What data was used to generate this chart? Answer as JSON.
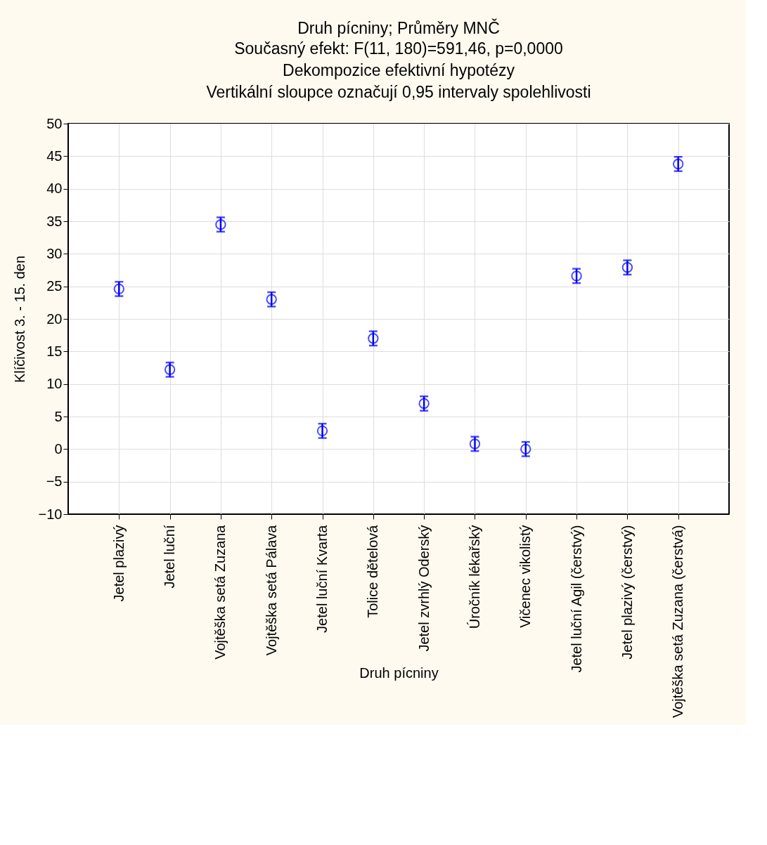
{
  "chart_data": {
    "type": "scatter",
    "title": "Druh pícniny; Průměry MNČ",
    "subtitle": "Současný efekt: F(11, 180)=591,46, p=0,0000\nDekompozice efektivní hypotézy\nVertikální sloupce označují 0,95 intervaly spolehlivosti",
    "xlabel": "Druh pícniny",
    "ylabel": "Klíčivost 3. - 15. den",
    "categories": [
      "Jetel plazivý",
      "Jetel luční",
      "Vojtěška setá Zuzana",
      "Vojtěška setá Pálava",
      "Jetel luční Kvarta",
      "Tolice dětelová",
      "Jetel zvrhlý Oderský",
      "Úročník lékařský",
      "Vičenec vikolistý",
      "Jetel luční Agil (čerstvý)",
      "Jetel plazivý (čerstvý)",
      "Vojtěška setá Zuzana (čerstvá)"
    ],
    "series": [
      {
        "color": "#0000ff",
        "values": [
          24.6,
          12.2,
          34.5,
          23.0,
          2.8,
          17.0,
          7.0,
          0.8,
          0.0,
          26.6,
          27.9,
          43.8
        ],
        "errors": [
          1.1,
          1.1,
          1.1,
          1.1,
          1.1,
          1.1,
          1.1,
          1.1,
          1.1,
          1.1,
          1.1,
          1.1
        ]
      }
    ],
    "ylim": [
      -10,
      50
    ],
    "yticks": [
      -10,
      -5,
      0,
      5,
      10,
      15,
      20,
      25,
      30,
      35,
      40,
      45,
      50
    ],
    "grid": true,
    "marker": "circle"
  }
}
